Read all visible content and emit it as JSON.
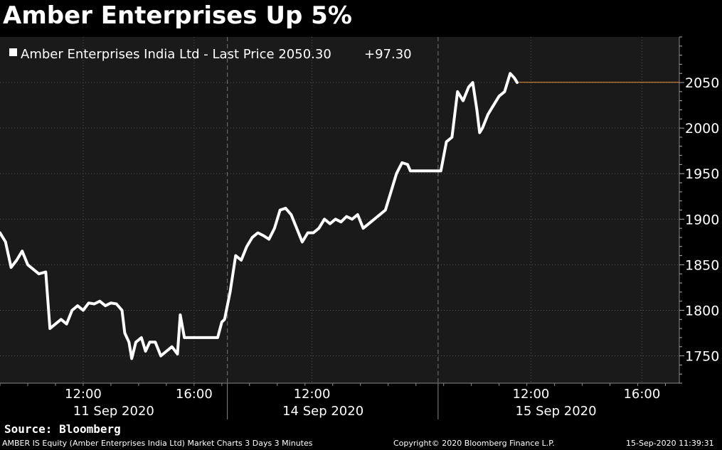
{
  "header": {
    "title": "Amber Enterprises Up 5%"
  },
  "legend": {
    "text": "Amber Enterprises India Ltd - Last Price 2050.30",
    "change": "+97.30",
    "swatch_color": "#ffffff"
  },
  "source": "Source: Bloomberg",
  "footer": {
    "left": "AMBER IS Equity (Amber Enterprises India Ltd) Market Charts 3 Days 3 Minutes",
    "center": "Copyright© 2020 Bloomberg Finance L.P.",
    "right": "15-Sep-2020 11:39:31"
  },
  "colors": {
    "background": "#000000",
    "plot_background": "#1a1a1a",
    "line": "#ffffff",
    "last_price_line": "#f0943a",
    "grid": "#555555"
  },
  "chart_data": {
    "type": "line",
    "title": "Amber Enterprises Up 5%",
    "series": [
      {
        "name": "Amber Enterprises India Ltd - Last Price",
        "values": [
          [
            0,
            1885
          ],
          [
            0.4,
            1875
          ],
          [
            0.8,
            1847
          ],
          [
            1.2,
            1855
          ],
          [
            1.6,
            1865
          ],
          [
            2.0,
            1850
          ],
          [
            2.4,
            1845
          ],
          [
            2.8,
            1840
          ],
          [
            3.3,
            1842
          ],
          [
            3.6,
            1780
          ],
          [
            4.0,
            1785
          ],
          [
            4.4,
            1790
          ],
          [
            4.8,
            1785
          ],
          [
            5.2,
            1800
          ],
          [
            5.6,
            1805
          ],
          [
            6.0,
            1800
          ],
          [
            6.4,
            1808
          ],
          [
            6.8,
            1807
          ],
          [
            7.2,
            1810
          ],
          [
            7.6,
            1805
          ],
          [
            8.0,
            1808
          ],
          [
            8.4,
            1807
          ],
          [
            8.8,
            1800
          ],
          [
            9.0,
            1775
          ],
          [
            9.3,
            1765
          ],
          [
            9.5,
            1747
          ],
          [
            9.8,
            1765
          ],
          [
            10.2,
            1770
          ],
          [
            10.5,
            1755
          ],
          [
            10.8,
            1765
          ],
          [
            11.2,
            1765
          ],
          [
            11.6,
            1750
          ],
          [
            12.0,
            1755
          ],
          [
            12.4,
            1760
          ],
          [
            12.8,
            1752
          ],
          [
            13.0,
            1795
          ],
          [
            13.3,
            1770
          ],
          [
            14.0,
            1770
          ],
          [
            15.0,
            1770
          ],
          [
            15.7,
            1770
          ],
          [
            16.0,
            1787
          ],
          [
            16.2,
            1790
          ],
          [
            16.6,
            1820
          ],
          [
            17.0,
            1860
          ],
          [
            17.4,
            1855
          ],
          [
            17.8,
            1870
          ],
          [
            18.2,
            1880
          ],
          [
            18.6,
            1885
          ],
          [
            19.0,
            1882
          ],
          [
            19.4,
            1878
          ],
          [
            19.8,
            1890
          ],
          [
            20.2,
            1910
          ],
          [
            20.6,
            1912
          ],
          [
            21.0,
            1905
          ],
          [
            21.4,
            1890
          ],
          [
            21.8,
            1875
          ],
          [
            22.2,
            1885
          ],
          [
            22.6,
            1885
          ],
          [
            23.0,
            1890
          ],
          [
            23.4,
            1900
          ],
          [
            23.8,
            1895
          ],
          [
            24.2,
            1900
          ],
          [
            24.6,
            1897
          ],
          [
            25.0,
            1903
          ],
          [
            25.4,
            1900
          ],
          [
            25.8,
            1905
          ],
          [
            26.2,
            1890
          ],
          [
            26.6,
            1895
          ],
          [
            27.0,
            1900
          ],
          [
            27.4,
            1905
          ],
          [
            27.8,
            1910
          ],
          [
            28.2,
            1930
          ],
          [
            28.6,
            1950
          ],
          [
            29.0,
            1962
          ],
          [
            29.4,
            1960
          ],
          [
            29.6,
            1953
          ],
          [
            30.0,
            1953
          ],
          [
            31.0,
            1953
          ],
          [
            31.8,
            1953
          ],
          [
            32.2,
            1985
          ],
          [
            32.6,
            1990
          ],
          [
            33.0,
            2040
          ],
          [
            33.4,
            2030
          ],
          [
            33.8,
            2045
          ],
          [
            34.1,
            2050
          ],
          [
            34.4,
            2020
          ],
          [
            34.6,
            1995
          ],
          [
            34.8,
            2000
          ],
          [
            35.2,
            2015
          ],
          [
            35.6,
            2025
          ],
          [
            36.0,
            2035
          ],
          [
            36.4,
            2040
          ],
          [
            36.8,
            2060
          ],
          [
            37.1,
            2055
          ],
          [
            37.3,
            2050
          ]
        ]
      }
    ],
    "last_price": 2050.3,
    "ylim": [
      1720,
      2100
    ],
    "yticks": [
      1750,
      1800,
      1850,
      1900,
      1950,
      2000,
      2050
    ],
    "xlim": [
      0,
      49
    ],
    "x_time_ticks": [
      {
        "x": 6,
        "label": "12:00"
      },
      {
        "x": 14,
        "label": "16:00"
      },
      {
        "x": 22.5,
        "label": "12:00"
      },
      {
        "x": 38.3,
        "label": "12:00"
      },
      {
        "x": 46.3,
        "label": "16:00"
      }
    ],
    "x_date_labels": [
      {
        "x": 8.2,
        "label": "11 Sep 2020"
      },
      {
        "x": 23.3,
        "label": "14 Sep 2020"
      },
      {
        "x": 40.1,
        "label": "15 Sep 2020"
      }
    ],
    "day_separators": [
      16.4,
      31.6
    ],
    "grid": true,
    "legend_position": "top-left"
  }
}
